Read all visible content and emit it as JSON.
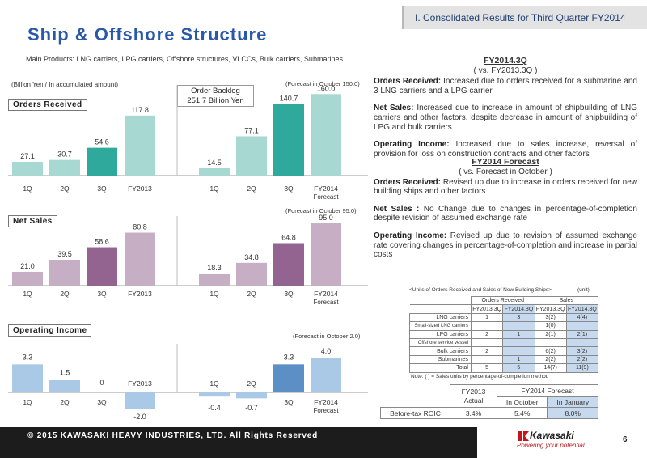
{
  "header": {
    "tag": "I. Consolidated Results for Third Quarter FY2014",
    "title": "Ship & Offshore Structure",
    "products": "Main Products: LNG carriers, LPG carriers, Offshore structures, VLCCs, Bulk carriers, Submarines"
  },
  "units_note": "(Billion Yen / In accumulated amount)",
  "backlog": {
    "line1": "Order Backlog",
    "line2": "251.7 Billion Yen"
  },
  "charts": {
    "orders": {
      "label": "Orders Received",
      "forecast_note": "(Forecast in October 150.0)"
    },
    "sales": {
      "label": "Net Sales",
      "forecast_note": "(Forecast in October 95.0)"
    },
    "income": {
      "label": "Operating Income",
      "forecast_note": "(Forecast in October 2.0)"
    }
  },
  "chart_data": [
    {
      "type": "bar",
      "title": "Orders Received",
      "categories": [
        "1Q",
        "2Q",
        "3Q",
        "FY2013",
        "1Q",
        "2Q",
        "3Q",
        "FY2014 Forecast"
      ],
      "values": [
        27.1,
        30.7,
        54.6,
        117.8,
        14.5,
        77.1,
        140.7,
        160.0
      ],
      "value_labels": [
        "27.1",
        "30.7",
        "54.6",
        "117.8",
        "14.5",
        "77.1",
        "140.7",
        "160.0"
      ],
      "ylim": [
        0,
        170
      ],
      "colors": [
        "#a7d8d1",
        "#a7d8d1",
        "#2ea99b",
        "#a7d8d1",
        "#a7d8d1",
        "#a7d8d1",
        "#2ea99b",
        "#a7d8d1"
      ]
    },
    {
      "type": "bar",
      "title": "Net Sales",
      "categories": [
        "1Q",
        "2Q",
        "3Q",
        "FY2013",
        "1Q",
        "2Q",
        "3Q",
        "FY2014 Forecast"
      ],
      "values": [
        21.0,
        39.5,
        58.6,
        80.8,
        18.3,
        34.8,
        64.8,
        95.0
      ],
      "value_labels": [
        "21.0",
        "39.5",
        "58.6",
        "80.8",
        "18.3",
        "34.8",
        "64.8",
        "95.0"
      ],
      "ylim": [
        0,
        100
      ],
      "colors": [
        "#c6aec5",
        "#c6aec5",
        "#93648f",
        "#c6aec5",
        "#c6aec5",
        "#c6aec5",
        "#93648f",
        "#c6aec5"
      ]
    },
    {
      "type": "bar",
      "title": "Operating Income",
      "categories": [
        "1Q",
        "2Q",
        "3Q",
        "FY2013",
        "1Q",
        "2Q",
        "3Q",
        "FY2014 Forecast"
      ],
      "values": [
        3.3,
        1.5,
        0,
        -2.0,
        -0.4,
        -0.7,
        3.3,
        4.0
      ],
      "value_labels": [
        "3.3",
        "1.5",
        "0",
        "-2.0",
        "-0.4",
        "-0.7",
        "3.3",
        "4.0"
      ],
      "ylim": [
        -3,
        5
      ],
      "colors": [
        "#a9c9e6",
        "#a9c9e6",
        "#5b8fc6",
        "#a9c9e6",
        "#a9c9e6",
        "#a9c9e6",
        "#5b8fc6",
        "#a9c9e6"
      ]
    }
  ],
  "right": {
    "h1": "FY2014.3Q",
    "h1_sub": "( vs. FY2013.3Q )",
    "p1_label": "Orders Received:",
    "p1": " Increased due to orders received for a submarine and 3 LNG carriers and a LPG carrier",
    "p2_label": "Net Sales:",
    "p2": " Increased due to increase in amount of shipbuilding of LNG carriers and other factors, despite decrease in amount of shipbuilding of LPG and bulk carriers",
    "p3_label": "Operating Income:",
    "p3": " Increased due to sales increase, reversal of provision for loss on construction contracts and other factors",
    "h2": "FY2014 Forecast",
    "h2_sub": "( vs. Forecast in October )",
    "p4_label": "Orders Received:",
    "p4": " Revised up due to increase in orders received for new building ships and other factors",
    "p5_label": "Net Sales :",
    "p5": " No Change due to changes in percentage-of-completion despite revision of assumed exchange rate",
    "p6_label": "Operating Income:",
    "p6": " Revised up due to revision of assumed exchange rate covering changes in percentage-of-completion and increase in partial costs"
  },
  "units_table": {
    "caption": "<Units of Orders Received and Sales of New Building Ships>",
    "unit": "(unit)",
    "group_orders": "Orders Received",
    "group_sales": "Sales",
    "cols": [
      "FY2013.3Q",
      "FY2014.3Q",
      "FY2013.3Q",
      "FY2014.3Q"
    ],
    "rows": [
      {
        "name": "LNG carriers",
        "v": [
          "1",
          "3",
          "3(2)",
          "4(4)"
        ]
      },
      {
        "name": "Small-sized LNG carriers",
        "v": [
          "",
          "",
          "1(0)",
          ""
        ]
      },
      {
        "name": "LPG carriers",
        "v": [
          "2",
          "1",
          "2(1)",
          "2(1)"
        ]
      },
      {
        "name": "Offshore service vessel",
        "v": [
          "",
          "",
          "",
          ""
        ]
      },
      {
        "name": "Bulk carriers",
        "v": [
          "2",
          "",
          "6(2)",
          "3(2)"
        ]
      },
      {
        "name": "Submarines",
        "v": [
          "",
          "1",
          "2(2)",
          "2(2)"
        ]
      },
      {
        "name": "Total",
        "v": [
          "5",
          "5",
          "14(7)",
          "11(9)"
        ]
      }
    ],
    "note": "Note: ( ) = Sales units by percentage-of-completion method"
  },
  "roic_table": {
    "col1_l1": "FY2013",
    "col1_l2": "Actual",
    "forecast": "FY2014 Forecast",
    "oct": "In October",
    "jan": "In January",
    "row_label": "Before-tax ROIC",
    "v1": "3.4%",
    "v2": "5.4%",
    "v3": "8.0%"
  },
  "footer": {
    "copyright": "© 2015 KAWASAKI HEAVY INDUSTRIES, LTD. All Rights Reserved",
    "logo": "Kawasaki",
    "tagline": "Powering your potential",
    "page": "6"
  }
}
